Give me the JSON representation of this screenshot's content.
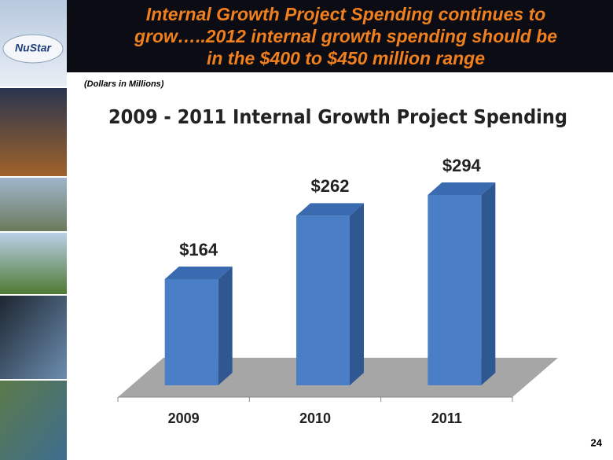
{
  "slide": {
    "title_lines": [
      "Internal Growth Project Spending continues to",
      "grow…..2012 internal growth spending should be",
      "in the $400 to $450 million range"
    ],
    "note": "(Dollars in Millions)",
    "logo": "NuStar",
    "page_number": "24"
  },
  "chart_data": {
    "type": "bar",
    "title": "2009 - 2011 Internal Growth Project Spending",
    "categories": [
      "2009",
      "2010",
      "2011"
    ],
    "values": [
      164,
      262,
      294
    ],
    "value_labels": [
      "$164",
      "$262",
      "$294"
    ],
    "color": "#4a7ec6"
  }
}
